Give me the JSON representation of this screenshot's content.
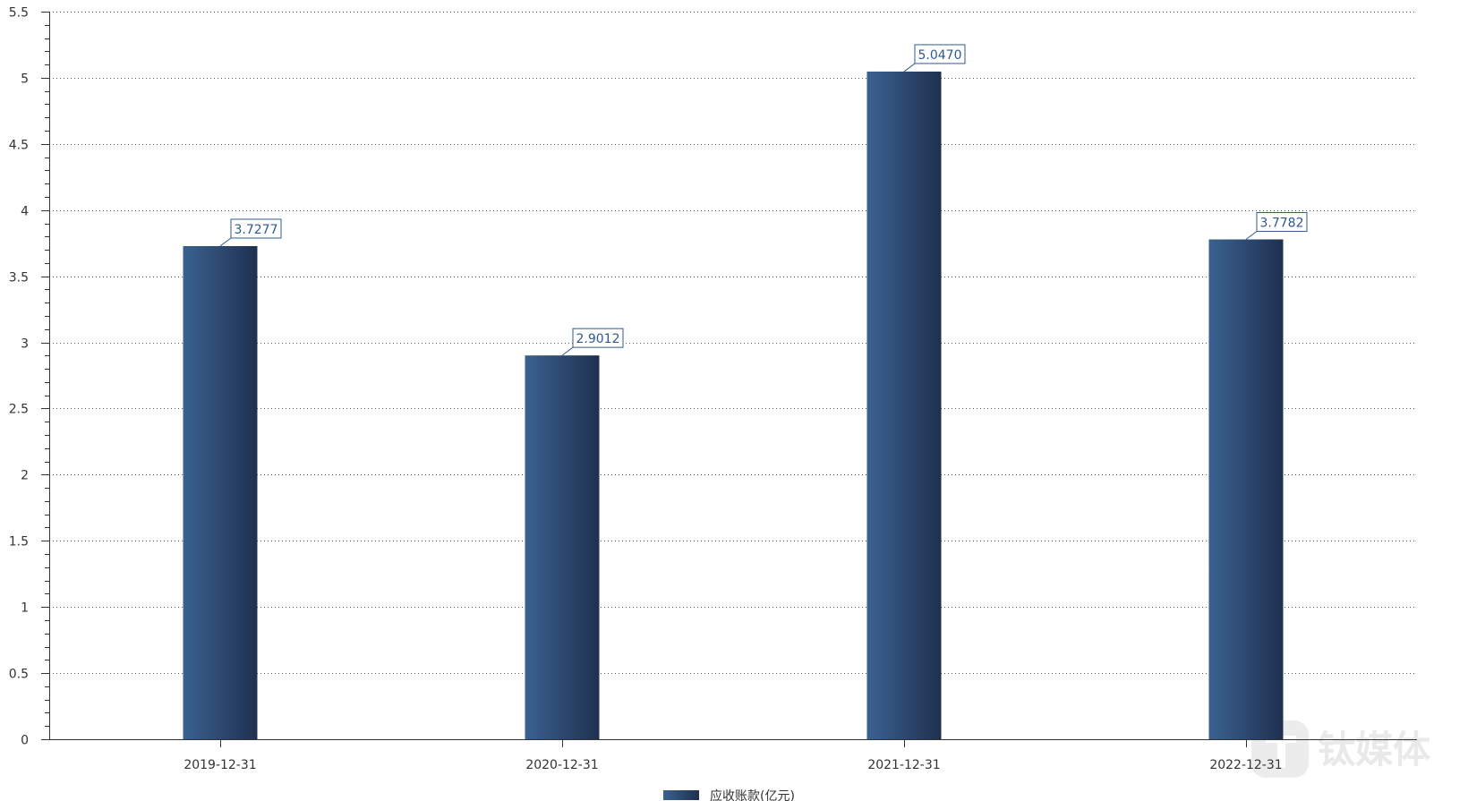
{
  "chart_data": {
    "type": "bar",
    "title": "",
    "xlabel": "",
    "ylabel": "",
    "categories": [
      "2019-12-31",
      "2020-12-31",
      "2021-12-31",
      "2022-12-31"
    ],
    "series": [
      {
        "name": "应收账款(亿元)",
        "values": [
          3.7277,
          2.9012,
          5.047,
          3.7782
        ],
        "labels": [
          "3.7277",
          "2.9012",
          "5.0470",
          "3.7782"
        ]
      }
    ],
    "ylim": [
      0,
      5.5
    ],
    "yticks": [
      "0",
      "0.5",
      "1",
      "1.5",
      "2",
      "2.5",
      "3",
      "3.5",
      "4",
      "4.5",
      "5",
      "5.5"
    ],
    "grid": "horizontal-dotted",
    "legend": "bottom-center",
    "colors": {
      "bar_light": "#3a6290",
      "bar_dark": "#1f3050",
      "label": "#2f5a8f",
      "axis": "#333333",
      "grid": "#555555"
    }
  },
  "watermark": {
    "text": "钛媒体",
    "icon": "tmt-logo-icon"
  }
}
